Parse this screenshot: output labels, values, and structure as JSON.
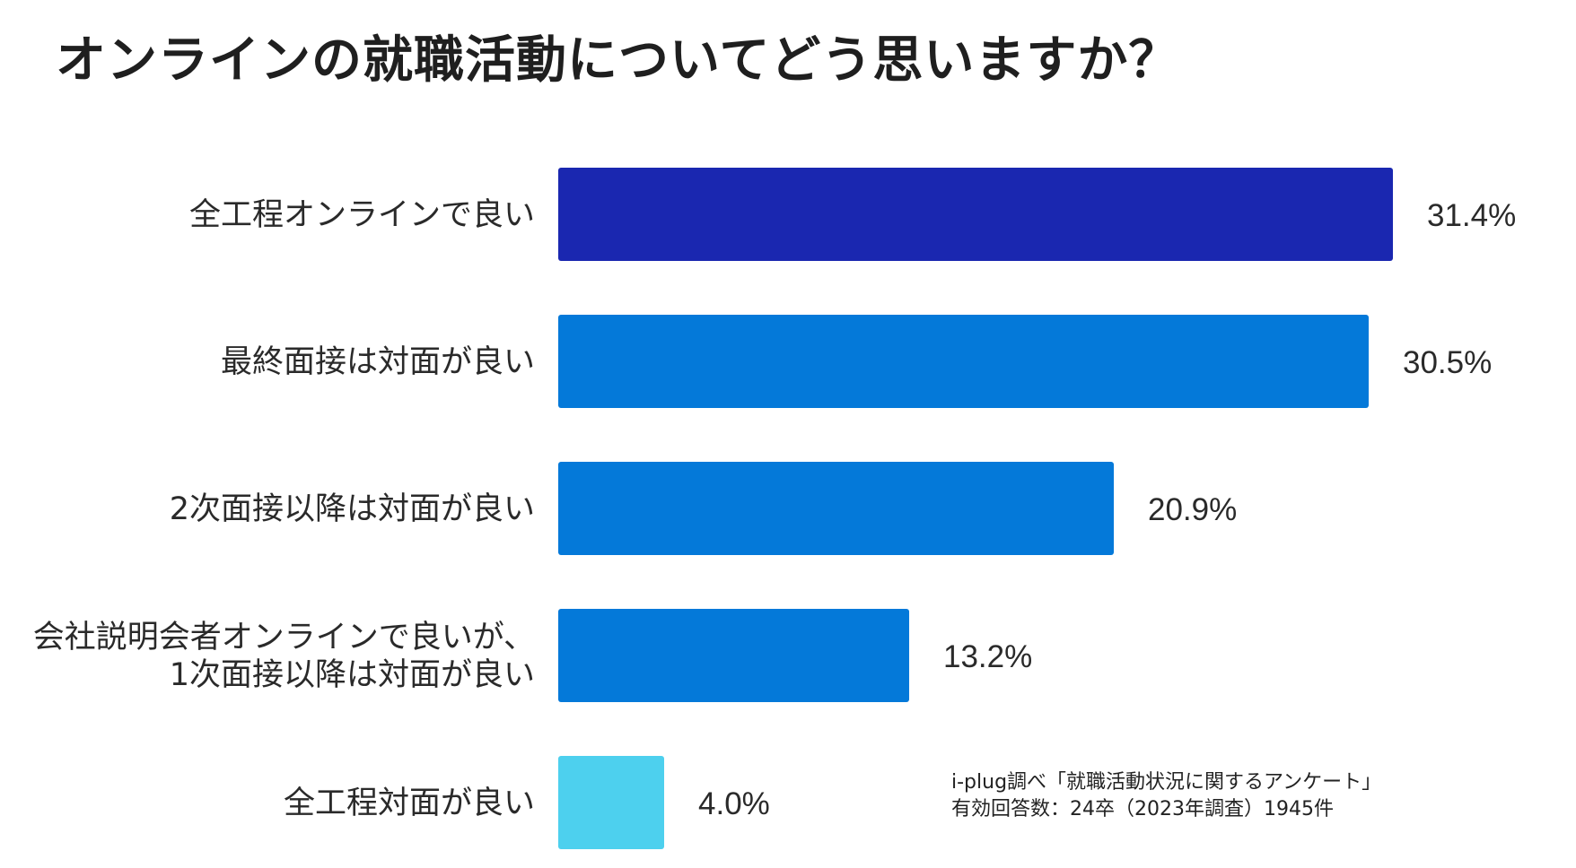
{
  "title": "オンラインの就職活動についてどう思いますか？",
  "source": {
    "line1": "i-plug調べ「就職活動状況に関するアンケート」",
    "line2": "有効回答数：24卒（2023年調査）1945件"
  },
  "chart_data": {
    "type": "bar",
    "orientation": "horizontal",
    "title": "オンラインの就職活動についてどう思いますか？",
    "categories": [
      "全工程オンラインで良い",
      "最終面接は対面が良い",
      "2次面接以降は対面が良い",
      "会社説明会者オンラインで良いが、\n1次面接以降は対面が良い",
      "全工程対面が良い"
    ],
    "values": [
      31.4,
      30.5,
      20.9,
      13.2,
      4.0
    ],
    "value_labels": [
      "31.4%",
      "30.5%",
      "20.9%",
      "13.2%",
      "4.0%"
    ],
    "colors": [
      "#1a27b0",
      "#0479d9",
      "#0479d9",
      "#0479d9",
      "#4dd0ee"
    ],
    "xlabel": "",
    "ylabel": "",
    "xlim": [
      0,
      31.4
    ],
    "grid": false,
    "legend": "none"
  }
}
